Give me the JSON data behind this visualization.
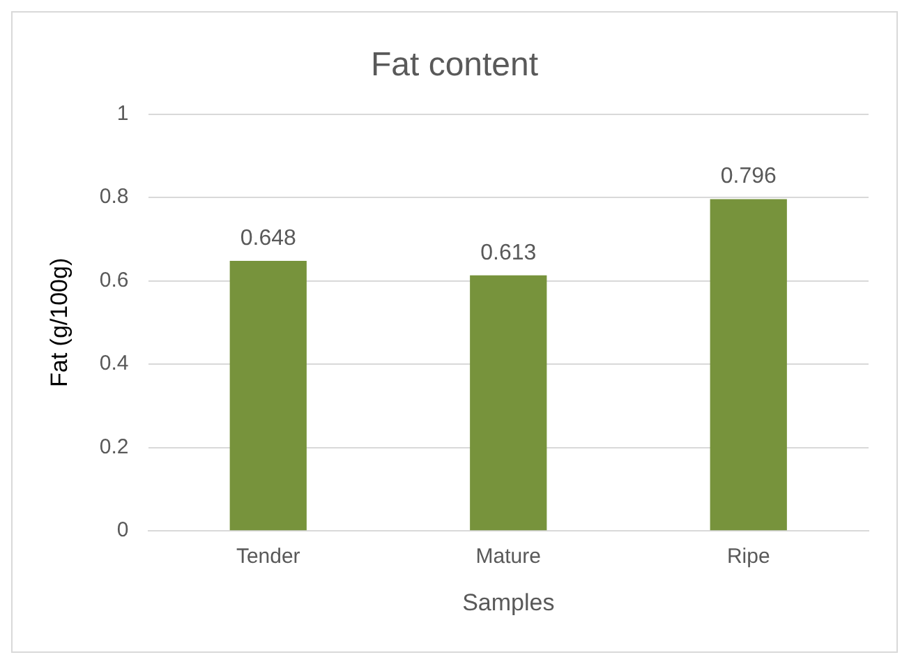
{
  "chart_data": {
    "type": "bar",
    "title": "Fat content",
    "xlabel": "Samples",
    "ylabel": "Fat (g/100g)",
    "categories": [
      "Tender",
      "Mature",
      "Ripe"
    ],
    "values": [
      0.648,
      0.613,
      0.796
    ],
    "color": "#77933c",
    "ylim": [
      0,
      1
    ],
    "yticks": [
      0,
      0.2,
      0.4,
      0.6,
      0.8,
      1
    ],
    "grid": "y",
    "legend": false,
    "data_labels": true
  }
}
